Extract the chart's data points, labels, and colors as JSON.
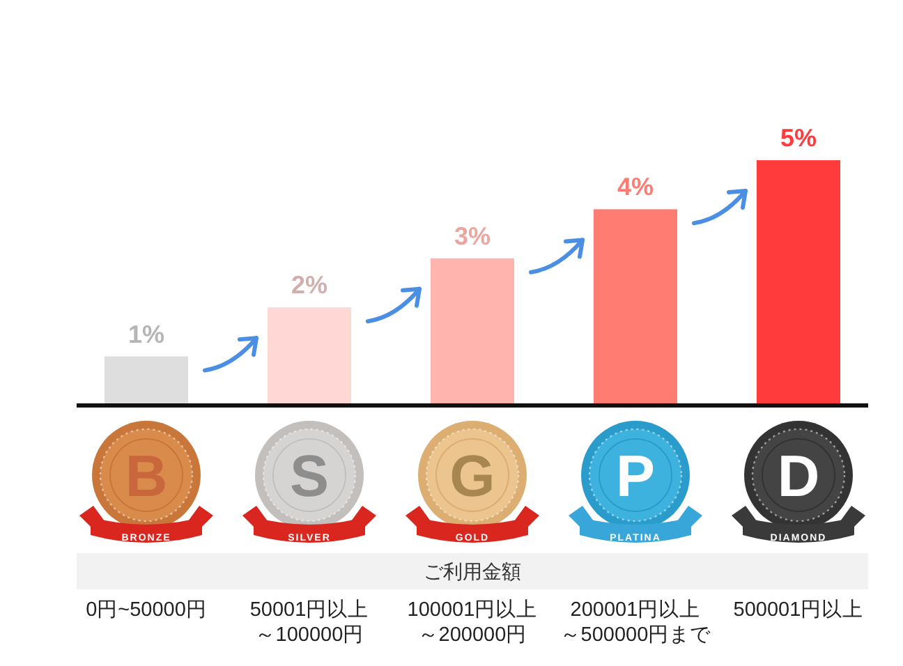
{
  "chart_data": {
    "type": "bar",
    "xlabel": "ご利用金額",
    "categories": [
      "0円~50000円",
      "50001円以上～100000円",
      "100001円以上～200000円",
      "200001円以上～500000円まで",
      "500001円以上"
    ],
    "values": [
      1,
      2,
      3,
      4,
      5
    ],
    "colors": [
      "#dedede",
      "#ffd7d4",
      "#ffb4ad",
      "#ff7c73",
      "#ff3b3b"
    ],
    "value_labels": [
      "1%",
      "2%",
      "3%",
      "4%",
      "5%"
    ],
    "annotations": [
      "B",
      "BRONZE",
      "S",
      "SILVER",
      "G",
      "GOLD",
      "P",
      "PLATINA",
      "D",
      "DIAMOND"
    ]
  }
}
